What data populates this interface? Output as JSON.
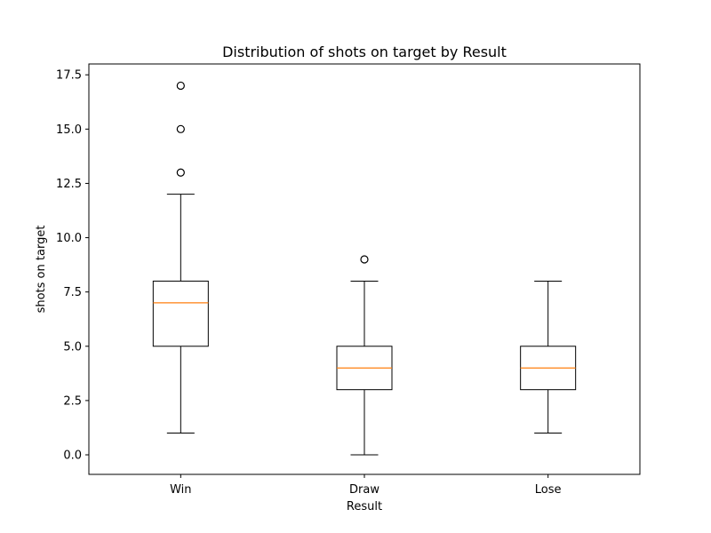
{
  "chart_data": {
    "type": "box",
    "title": "Distribution of shots on target by Result",
    "xlabel": "Result",
    "ylabel": "shots on target",
    "ylim": [
      -0.9,
      18.0
    ],
    "yticks": [
      0.0,
      2.5,
      5.0,
      7.5,
      10.0,
      12.5,
      15.0,
      17.5
    ],
    "ytick_labels": [
      "0.0",
      "2.5",
      "5.0",
      "7.5",
      "10.0",
      "12.5",
      "15.0",
      "17.5"
    ],
    "grid": false,
    "colors": {
      "box": "#000000",
      "median": "#ff7f0e",
      "flier": "#000000"
    },
    "categories": [
      "Win",
      "Draw",
      "Lose"
    ],
    "boxes": [
      {
        "label": "Win",
        "whisker_low": 1,
        "q1": 5,
        "median": 7,
        "q3": 8,
        "whisker_high": 12,
        "fliers": [
          13,
          15,
          17
        ]
      },
      {
        "label": "Draw",
        "whisker_low": 0,
        "q1": 3,
        "median": 4,
        "q3": 5,
        "whisker_high": 8,
        "fliers": [
          9
        ]
      },
      {
        "label": "Lose",
        "whisker_low": 1,
        "q1": 3,
        "median": 4,
        "q3": 5,
        "whisker_high": 8,
        "fliers": []
      }
    ]
  }
}
